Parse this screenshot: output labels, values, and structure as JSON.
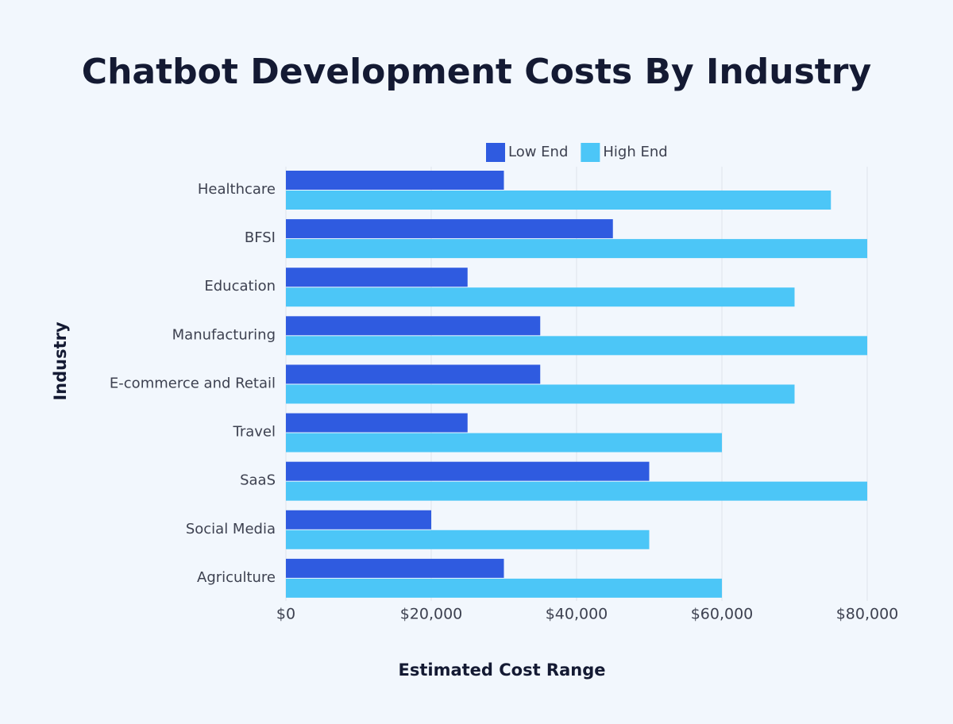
{
  "chart_data": {
    "type": "bar",
    "orientation": "horizontal",
    "title": "Chatbot Development Costs By Industry",
    "x_label": "Estimated Cost Range",
    "y_label": "Industry",
    "categories": [
      "Healthcare",
      "BFSI",
      "Education",
      "Manufacturing",
      "E-commerce and Retail",
      "Travel",
      "SaaS",
      "Social Media",
      "Agriculture"
    ],
    "series": [
      {
        "name": "Low End",
        "color": "#2f5be0",
        "values": [
          30000,
          45000,
          25000,
          35000,
          35000,
          25000,
          50000,
          20000,
          30000
        ]
      },
      {
        "name": "High End",
        "color": "#4cc6f7",
        "values": [
          75000,
          80000,
          70000,
          80000,
          70000,
          60000,
          80000,
          50000,
          60000
        ]
      }
    ],
    "xlim": [
      0,
      80000
    ],
    "xticks": [
      {
        "value": 0,
        "label": "$0"
      },
      {
        "value": 20000,
        "label": "$20,000"
      },
      {
        "value": 40000,
        "label": "$40,000"
      },
      {
        "value": 60000,
        "label": "$60,000"
      },
      {
        "value": 80000,
        "label": "$80,000"
      }
    ],
    "grid": true
  }
}
